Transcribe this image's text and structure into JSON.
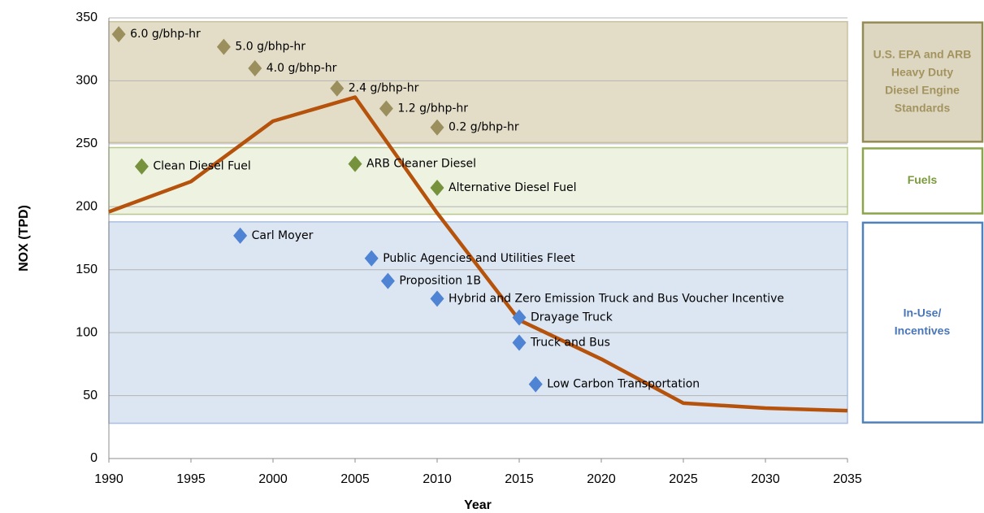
{
  "chart_data": {
    "type": "line",
    "xlabel": "Year",
    "ylabel": "NOX (TPD)",
    "xlim": [
      1990,
      2035
    ],
    "xticks": [
      1990,
      1995,
      2000,
      2005,
      2010,
      2015,
      2020,
      2025,
      2030,
      2035
    ],
    "ylim": [
      0,
      350
    ],
    "yticks": [
      0,
      50,
      100,
      150,
      200,
      250,
      300,
      350
    ],
    "grid": true,
    "x": [
      1990,
      1995,
      2000,
      2005,
      2010,
      2015,
      2020,
      2025,
      2030,
      2035
    ],
    "series": [
      {
        "color": "#b5520c",
        "values": [
          196,
          220,
          268,
          287,
          195,
          110,
          79,
          44,
          40,
          38
        ]
      }
    ],
    "bands": [
      {
        "label": [
          "U.S. EPA and ARB",
          "Heavy Duty",
          "Diesel Engine",
          "Standards"
        ],
        "range": [
          251,
          347
        ],
        "fill": "#e3ddc8",
        "stroke": "#c9c0a2",
        "box_fill": "#ddd7c1",
        "box_stroke": "#948a54",
        "text_color": "#a2935f",
        "color": "#9c8f5e",
        "markers": [
          {
            "x": 1990.6,
            "y": 337,
            "label": "6.0 g/bhp-hr"
          },
          {
            "x": 1997,
            "y": 327,
            "label": "5.0 g/bhp-hr"
          },
          {
            "x": 1998.9,
            "y": 310,
            "label": "4.0 g/bhp-hr"
          },
          {
            "x": 2003.9,
            "y": 294,
            "label": "2.4 g/bhp-hr"
          },
          {
            "x": 2006.9,
            "y": 278,
            "label": "1.2 g/bhp-hr"
          },
          {
            "x": 2010,
            "y": 263,
            "label": "0.2 g/bhp-hr"
          }
        ]
      },
      {
        "label": [
          "Fuels"
        ],
        "range": [
          194,
          247
        ],
        "fill": "#eef2e1",
        "stroke": "#b8c98e",
        "box_fill": "#ffffff",
        "box_stroke": "#8aa54a",
        "text_color": "#7b9a3c",
        "color": "#76923c",
        "markers": [
          {
            "x": 1992,
            "y": 232,
            "label": "Clean Diesel Fuel"
          },
          {
            "x": 2005,
            "y": 234,
            "label": "ARB Cleaner Diesel"
          },
          {
            "x": 2010,
            "y": 215,
            "label": "Alternative Diesel Fuel"
          }
        ]
      },
      {
        "label": [
          "In-Use/",
          "Incentives"
        ],
        "range": [
          28,
          188
        ],
        "fill": "#dce5f2",
        "stroke": "#aabfe0",
        "box_fill": "#ffffff",
        "box_stroke": "#4f81bd",
        "text_color": "#4a76b8",
        "color": "#4f83d3",
        "markers": [
          {
            "x": 1998,
            "y": 177,
            "label": "Carl Moyer"
          },
          {
            "x": 2006,
            "y": 159,
            "label": "Public Agencies and Utilities Fleet"
          },
          {
            "x": 2007,
            "y": 141,
            "label": "Proposition 1B"
          },
          {
            "x": 2010,
            "y": 127,
            "label": "Hybrid and Zero Emission Truck and Bus Voucher Incentive"
          },
          {
            "x": 2015,
            "y": 112,
            "label": "Drayage Truck"
          },
          {
            "x": 2015,
            "y": 92,
            "label": "Truck and Bus"
          },
          {
            "x": 2016,
            "y": 59,
            "label": "Low Carbon Transportation"
          }
        ]
      }
    ]
  }
}
